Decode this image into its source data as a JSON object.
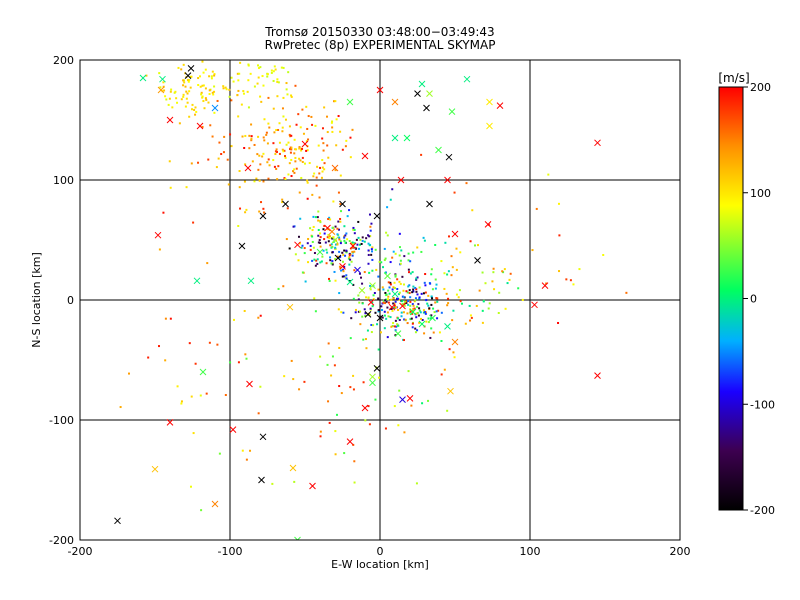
{
  "chart_data": {
    "type": "scatter",
    "title": "Tromsø 20150330 03:48:00−03:49:43",
    "subtitle": "RwPretec (8p) EXPERIMENTAL SKYMAP",
    "xlabel": "E-W location [km]",
    "ylabel": "N-S location [km]",
    "xlim": [
      -200,
      200
    ],
    "ylim": [
      -200,
      200
    ],
    "xticks": [
      "-200",
      "-100",
      "0",
      "100",
      "200"
    ],
    "yticks": [
      "-200",
      "-100",
      "0",
      "100",
      "200"
    ],
    "grid": true,
    "colorbar": {
      "label": "[m/s]",
      "range": [
        -200,
        200
      ],
      "ticks": [
        "200",
        "100",
        "0",
        "-100",
        "-200"
      ],
      "colormap": [
        "#000000",
        "#3d0050",
        "#1a00ff",
        "#00b0ff",
        "#00ff60",
        "#ffff00",
        "#ff9000",
        "#ff0000"
      ]
    },
    "series": [
      {
        "marker": "x",
        "points": [
          [
            -175,
            -184,
            -200
          ],
          [
            -150,
            -141,
            120
          ],
          [
            -110,
            -170,
            150
          ],
          [
            -79,
            -150,
            -200
          ],
          [
            -78,
            -114,
            -200
          ],
          [
            -58,
            -140,
            120
          ],
          [
            -45,
            -155,
            200
          ],
          [
            -55,
            -200,
            30
          ],
          [
            -20,
            -118,
            200
          ],
          [
            -10,
            -90,
            200
          ],
          [
            15,
            -83,
            -100
          ],
          [
            20,
            -82,
            200
          ],
          [
            47,
            -76,
            120
          ],
          [
            -98,
            -108,
            200
          ],
          [
            -118,
            -60,
            30
          ],
          [
            -2,
            -57,
            -200
          ],
          [
            -5,
            -64,
            60
          ],
          [
            -5,
            -69,
            30
          ],
          [
            -148,
            54,
            200
          ],
          [
            -122,
            16,
            0
          ],
          [
            -86,
            16,
            0
          ],
          [
            -92,
            45,
            -200
          ],
          [
            -110,
            160,
            -50
          ],
          [
            -145,
            184,
            0
          ],
          [
            -158,
            185,
            0
          ],
          [
            -128,
            187,
            -200
          ],
          [
            -126,
            193,
            -200
          ],
          [
            -146,
            175,
            140
          ],
          [
            -140,
            150,
            200
          ],
          [
            -120,
            145,
            200
          ],
          [
            -50,
            130,
            200
          ],
          [
            -30,
            110,
            160
          ],
          [
            -10,
            120,
            200
          ],
          [
            10,
            135,
            0
          ],
          [
            28,
            180,
            0
          ],
          [
            25,
            172,
            -200
          ],
          [
            31,
            160,
            -200
          ],
          [
            33,
            172,
            60
          ],
          [
            48,
            157,
            30
          ],
          [
            58,
            184,
            0
          ],
          [
            39,
            125,
            30
          ],
          [
            46,
            119,
            -200
          ],
          [
            45,
            100,
            200
          ],
          [
            73,
            165,
            100
          ],
          [
            14,
            100,
            200
          ],
          [
            33,
            80,
            -200
          ],
          [
            50,
            55,
            200
          ],
          [
            65,
            33,
            -200
          ],
          [
            72,
            63,
            200
          ],
          [
            145,
            131,
            200
          ],
          [
            145,
            -63,
            200
          ],
          [
            80,
            162,
            200
          ],
          [
            73,
            145,
            100
          ],
          [
            18,
            135,
            10
          ],
          [
            10,
            165,
            150
          ],
          [
            -78,
            70,
            -200
          ],
          [
            -55,
            46,
            200
          ],
          [
            -35,
            60,
            200
          ],
          [
            -40,
            40,
            30
          ],
          [
            -28,
            35,
            -200
          ],
          [
            -25,
            28,
            200
          ],
          [
            -18,
            45,
            200
          ],
          [
            -15,
            25,
            -100
          ],
          [
            -20,
            15,
            0
          ],
          [
            -5,
            12,
            60
          ],
          [
            5,
            20,
            40
          ],
          [
            10,
            5,
            0
          ],
          [
            15,
            -5,
            200
          ],
          [
            22,
            -10,
            10
          ],
          [
            35,
            -15,
            20
          ],
          [
            45,
            -22,
            0
          ],
          [
            50,
            -35,
            150
          ],
          [
            110,
            12,
            200
          ],
          [
            103,
            -4,
            200
          ],
          [
            -60,
            -6,
            120
          ],
          [
            -87,
            -70,
            200
          ],
          [
            -140,
            -102,
            200
          ],
          [
            -63,
            80,
            -200
          ],
          [
            -88,
            110,
            200
          ],
          [
            -20,
            165,
            30
          ],
          [
            0,
            175,
            200
          ],
          [
            -2,
            70,
            -200
          ],
          [
            -25,
            80,
            -200
          ],
          [
            -30,
            50,
            60
          ],
          [
            -32,
            57,
            150
          ],
          [
            -6,
            -2,
            200
          ],
          [
            8,
            -6,
            200
          ],
          [
            -8,
            -12,
            -200
          ],
          [
            0,
            -15,
            -200
          ],
          [
            -12,
            8,
            60
          ],
          [
            28,
            -20,
            10
          ],
          [
            12,
            -28,
            30
          ]
        ]
      },
      {
        "marker": "dot",
        "clusters": [
          {
            "center": [
              -30,
              45
            ],
            "spread": [
              12,
              12
            ],
            "count": 180,
            "vmin": -200,
            "vmax": 200
          },
          {
            "center": [
              12,
              -5
            ],
            "spread": [
              14,
              12
            ],
            "count": 200,
            "vmin": -200,
            "vmax": 200
          },
          {
            "center": [
              -55,
              125
            ],
            "spread": [
              16,
              22
            ],
            "count": 150,
            "vmin": 80,
            "vmax": 200
          },
          {
            "center": [
              -120,
              178
            ],
            "spread": [
              14,
              10
            ],
            "count": 100,
            "vmin": 80,
            "vmax": 130
          },
          {
            "center": [
              -2,
              30
            ],
            "spread": [
              20,
              25
            ],
            "count": 90,
            "vmin": -200,
            "vmax": 80
          },
          {
            "center": [
              40,
              10
            ],
            "spread": [
              25,
              20
            ],
            "count": 80,
            "vmin": -20,
            "vmax": 200
          },
          {
            "center": [
              -100,
              120
            ],
            "spread": [
              20,
              25
            ],
            "count": 60,
            "vmin": 100,
            "vmax": 200
          },
          {
            "center": [
              -10,
              -60
            ],
            "spread": [
              25,
              40
            ],
            "count": 50,
            "vmin": 0,
            "vmax": 200
          },
          {
            "center": [
              -40,
              -90
            ],
            "spread": [
              50,
              45
            ],
            "count": 30,
            "vmin": 30,
            "vmax": 200
          },
          {
            "center": [
              90,
              40
            ],
            "spread": [
              40,
              30
            ],
            "count": 40,
            "vmin": 60,
            "vmax": 200
          },
          {
            "center": [
              -110,
              -30
            ],
            "spread": [
              35,
              60
            ],
            "count": 30,
            "vmin": 80,
            "vmax": 200
          },
          {
            "center": [
              -78,
              185
            ],
            "spread": [
              10,
              10
            ],
            "count": 40,
            "vmin": 70,
            "vmax": 110
          }
        ]
      }
    ]
  }
}
